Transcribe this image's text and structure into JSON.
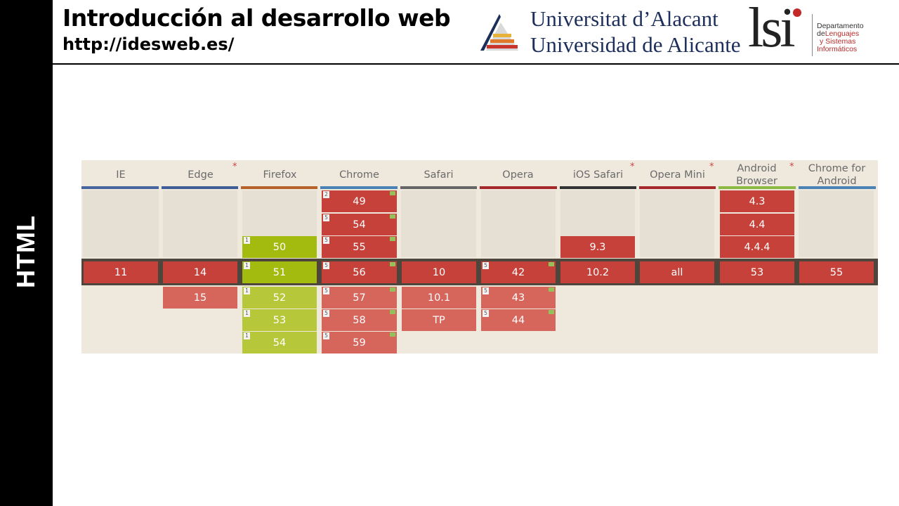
{
  "sidebar": {
    "label": "HTML"
  },
  "header": {
    "title": "Introducción al desarrollo web",
    "url": "http://idesweb.es/",
    "university_line1": "Universitat d’Alacant",
    "university_line2": "Universidad de Alicante",
    "dept_mark": "lsi",
    "dept_line1": "Departamento",
    "dept_line2a": "de",
    "dept_line2b": "Lenguajes",
    "dept_line3": "y Sistemas",
    "dept_line4": "Informáticos"
  },
  "browsers": [
    {
      "name": "IE",
      "asterisk": ""
    },
    {
      "name": "Edge",
      "asterisk": "*"
    },
    {
      "name": "Firefox",
      "asterisk": ""
    },
    {
      "name": "Chrome",
      "asterisk": ""
    },
    {
      "name": "Safari",
      "asterisk": ""
    },
    {
      "name": "Opera",
      "asterisk": ""
    },
    {
      "name": "iOS Safari",
      "asterisk": "*"
    },
    {
      "name": "Opera Mini",
      "asterisk": "*"
    },
    {
      "name": "Android Browser",
      "asterisk": "*"
    },
    {
      "name": "Chrome for Android",
      "asterisk": ""
    }
  ],
  "colors": {
    "support_full": "#c5413a",
    "support_full_future": "#d6655c",
    "support_partial": "#a3ba0e",
    "support_partial_future": "#b6c83a",
    "underline_ie": "#4766a0",
    "underline_edge": "#3f5d96",
    "underline_firefox": "#b5632a",
    "underline_chrome": "#4a82b5",
    "underline_safari": "#666666",
    "underline_opera": "#a5282b",
    "underline_ios": "#333333",
    "underline_operamini": "#a5282b",
    "underline_android": "#8cb844",
    "underline_chromeandroid": "#4a82b5"
  },
  "cells": {
    "chrome_49": {
      "version": "49",
      "note": "2"
    },
    "chrome_54": {
      "version": "54",
      "note": "5"
    },
    "firefox_50": {
      "version": "50",
      "note": "1"
    },
    "chrome_55": {
      "version": "55",
      "note": "5"
    },
    "ios_93": {
      "version": "9.3"
    },
    "android_43": {
      "version": "4.3"
    },
    "android_44": {
      "version": "4.4"
    },
    "android_444": {
      "version": "4.4.4"
    },
    "ie_11": {
      "version": "11"
    },
    "edge_14": {
      "version": "14"
    },
    "firefox_51": {
      "version": "51",
      "note": "1"
    },
    "chrome_56": {
      "version": "56",
      "note": "5"
    },
    "safari_10": {
      "version": "10"
    },
    "opera_42": {
      "version": "42",
      "note": "5"
    },
    "ios_102": {
      "version": "10.2"
    },
    "operamini_all": {
      "version": "all"
    },
    "android_53": {
      "version": "53"
    },
    "chromeandroid_55": {
      "version": "55"
    },
    "edge_15": {
      "version": "15"
    },
    "firefox_52": {
      "version": "52",
      "note": "1"
    },
    "chrome_57": {
      "version": "57",
      "note": "5"
    },
    "safari_101": {
      "version": "10.1"
    },
    "opera_43": {
      "version": "43",
      "note": "5"
    },
    "firefox_53": {
      "version": "53",
      "note": "1"
    },
    "chrome_58": {
      "version": "58",
      "note": "5"
    },
    "safari_tp": {
      "version": "TP"
    },
    "opera_44": {
      "version": "44",
      "note": "5"
    },
    "firefox_54": {
      "version": "54",
      "note": "1"
    },
    "chrome_59": {
      "version": "59",
      "note": "5"
    }
  }
}
